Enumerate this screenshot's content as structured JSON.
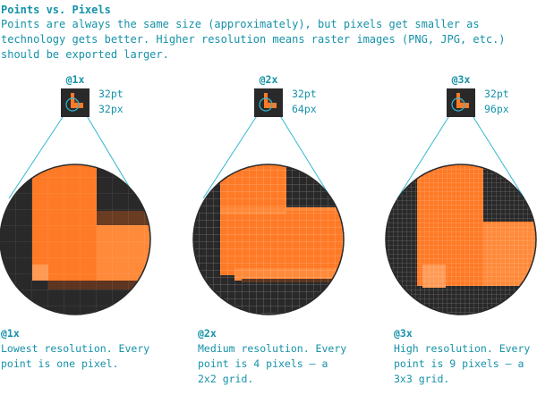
{
  "header": {
    "title": "Points vs. Pixels",
    "intro": "Points are always the same size (approximately), but pixels get smaller as technology gets better. Higher resolution means raster images (PNG, JPG, etc.) should be exported larger."
  },
  "scales": [
    {
      "label": "@1x",
      "points": "32pt",
      "pixels": "32px",
      "heading": "@1x",
      "desc": "Lowest resolution. Every point is one pixel.",
      "pixel_ratio": 1
    },
    {
      "label": "@2x",
      "points": "32pt",
      "pixels": "64px",
      "heading": "@2x",
      "desc": "Medium resolution. Every point is 4 pixels – a 2x2 grid.",
      "pixel_ratio": 2
    },
    {
      "label": "@3x",
      "points": "32pt",
      "pixels": "96px",
      "heading": "@3x",
      "desc": "High resolution. Every point is 9 pixels – a 3x3 grid.",
      "pixel_ratio": 3
    }
  ],
  "colors": {
    "text": "#1592a8",
    "dark": "#292929",
    "orange": "#ff7a26",
    "orange_light": "#ff9a55",
    "shadow": "#6a3c22",
    "line": "#32b6cf"
  }
}
